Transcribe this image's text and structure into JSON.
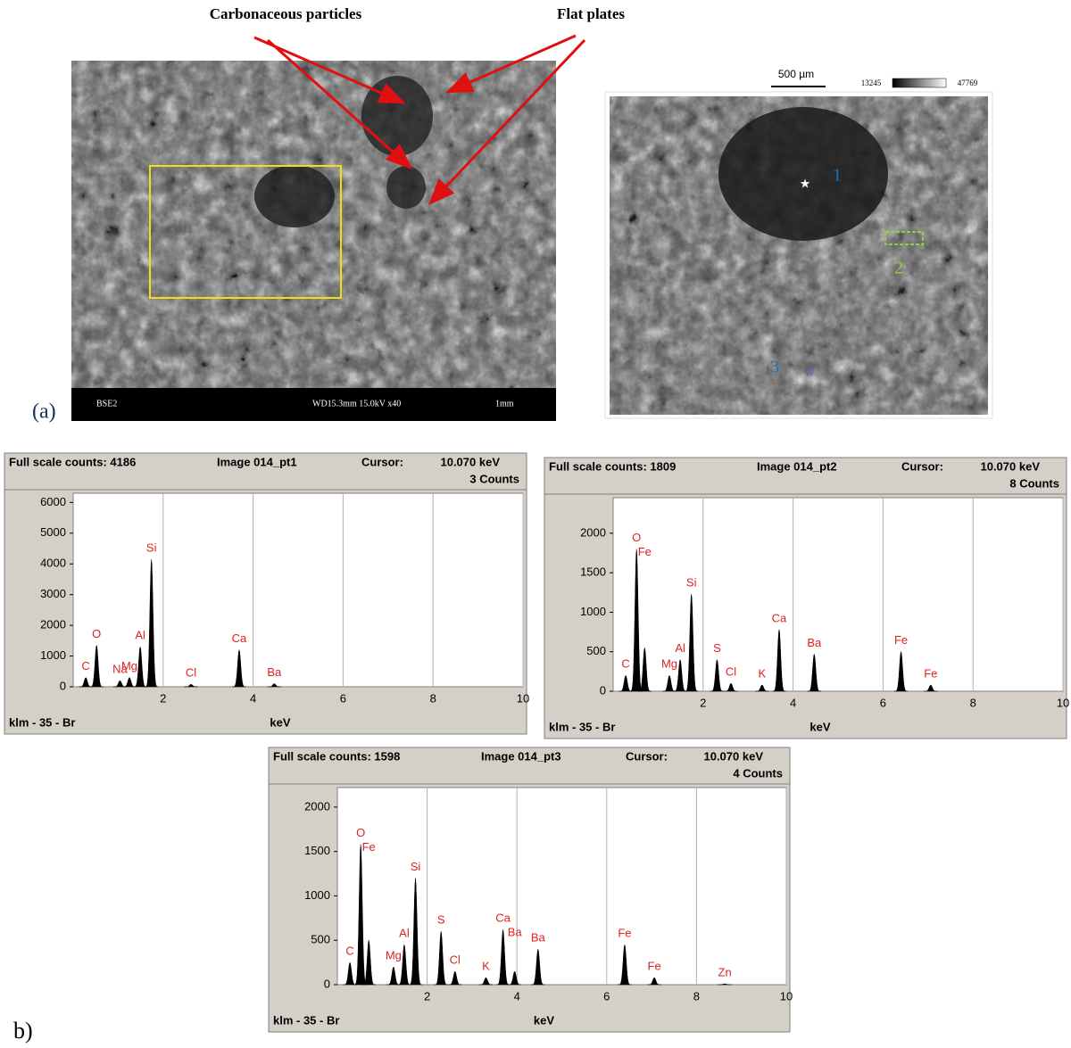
{
  "figure_a": {
    "label": "(a)",
    "annotations": [
      "Carbonaceous particles",
      "Flat plates"
    ],
    "sem_footer": [
      "BSE2",
      "WD15.3mm 15.0kV x40",
      "1mm"
    ],
    "scale_bar": "500 µm",
    "color_scale": [
      "13245",
      "47769"
    ],
    "points": [
      "1",
      "2",
      "3"
    ]
  },
  "figure_b_label": "b)",
  "chart_data": [
    {
      "type": "spectrum",
      "header": {
        "full_scale": "Full scale counts: 4186",
        "image": "Image 014_pt1",
        "cursor_label": "Cursor:",
        "cursor": "10.070 keV",
        "counts": "3 Counts"
      },
      "footer": "klm - 35 - Br",
      "x_label": "keV",
      "labels": [
        "C",
        "O",
        "Na",
        "Mg",
        "Al",
        "Si",
        "Cl",
        "Ca",
        "Ba"
      ],
      "x": [
        0.28,
        0.52,
        1.04,
        1.25,
        1.49,
        1.74,
        2.62,
        3.69,
        4.47
      ],
      "values": [
        300,
        1350,
        200,
        300,
        1300,
        4150,
        80,
        1200,
        100
      ],
      "xlim": [
        0,
        10
      ],
      "xticks": [
        2,
        4,
        6,
        8,
        10
      ],
      "ylim": [
        0,
        6300
      ],
      "yticks": [
        0,
        1000,
        2000,
        3000,
        4000,
        5000,
        6000
      ],
      "color": "#000000",
      "label_color": "#e02020"
    },
    {
      "type": "spectrum",
      "header": {
        "full_scale": "Full scale counts: 1809",
        "image": "Image 014_pt2",
        "cursor_label": "Cursor:",
        "cursor": "10.070 keV",
        "counts": "8 Counts"
      },
      "footer": "klm - 35 - Br",
      "x_label": "keV",
      "labels": [
        "C",
        "O",
        "Fe",
        "Mg",
        "Al",
        "Si",
        "S",
        "Cl",
        "K",
        "Ca",
        "Ba",
        "Fe",
        "Fe"
      ],
      "x": [
        0.28,
        0.52,
        0.7,
        1.25,
        1.49,
        1.74,
        2.31,
        2.62,
        3.31,
        3.69,
        4.47,
        6.4,
        7.06
      ],
      "values": [
        200,
        1800,
        550,
        200,
        400,
        1230,
        400,
        100,
        80,
        780,
        470,
        500,
        80
      ],
      "xlim": [
        0,
        10
      ],
      "xticks": [
        2,
        4,
        6,
        8,
        10
      ],
      "ylim": [
        0,
        2450
      ],
      "yticks": [
        0,
        500,
        1000,
        1500,
        2000
      ],
      "color": "#000000",
      "label_color": "#e02020"
    },
    {
      "type": "spectrum",
      "header": {
        "full_scale": "Full scale counts: 1598",
        "image": "Image 014_pt3",
        "cursor_label": "Cursor:",
        "cursor": "10.070 keV",
        "counts": "4 Counts"
      },
      "footer": "klm - 35 - Br",
      "x_label": "keV",
      "labels": [
        "C",
        "O",
        "Fe",
        "Mg",
        "Al",
        "Si",
        "S",
        "Cl",
        "K",
        "Ca",
        "Ba",
        "Ba",
        "Fe",
        "Fe",
        "Zn"
      ],
      "x": [
        0.28,
        0.52,
        0.7,
        1.25,
        1.49,
        1.74,
        2.31,
        2.62,
        3.31,
        3.69,
        3.95,
        4.47,
        6.4,
        7.06,
        8.63
      ],
      "values": [
        250,
        1580,
        500,
        200,
        450,
        1200,
        600,
        150,
        80,
        620,
        150,
        400,
        450,
        80,
        10
      ],
      "xlim": [
        0,
        10
      ],
      "xticks": [
        2,
        4,
        6,
        8,
        10
      ],
      "ylim": [
        0,
        2220
      ],
      "yticks": [
        0,
        500,
        1000,
        1500,
        2000
      ],
      "color": "#000000",
      "label_color": "#e02020"
    }
  ]
}
